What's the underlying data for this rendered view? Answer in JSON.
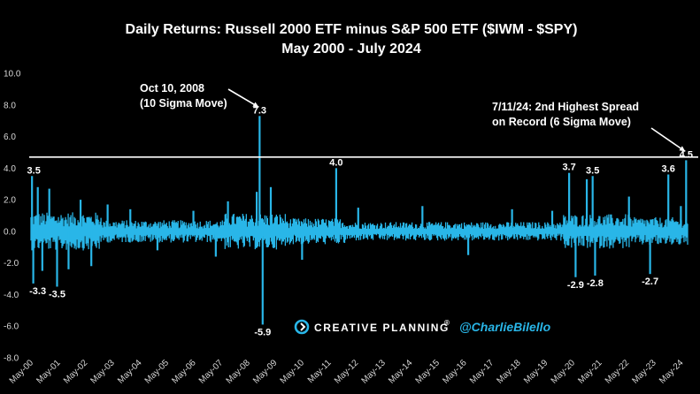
{
  "chart_data": {
    "type": "bar",
    "title": "Daily Returns: Russell 2000 ETF minus S&P 500 ETF ($IWM - $SPY)",
    "subtitle": "May 2000 - July 2024",
    "xlabel": "",
    "ylabel": "",
    "ylim": [
      -8.0,
      10.0
    ],
    "y_ticks": [
      "10.0",
      "8.0",
      "6.0",
      "4.0",
      "2.0",
      "0.0",
      "-2.0",
      "-4.0",
      "-6.0",
      "-8.0"
    ],
    "x_ticks": [
      "May-00",
      "May-01",
      "May-02",
      "May-03",
      "May-04",
      "May-05",
      "May-06",
      "May-07",
      "May-08",
      "May-09",
      "May-10",
      "May-11",
      "May-12",
      "May-13",
      "May-14",
      "May-15",
      "May-16",
      "May-17",
      "May-18",
      "May-19",
      "May-20",
      "May-21",
      "May-22",
      "May-23",
      "May-24"
    ],
    "x_range": [
      "2000-05-01",
      "2024-07-31"
    ],
    "grid": false,
    "bar_color": "#29b6e8",
    "reference_line": {
      "value": 4.7,
      "color": "#ffffff"
    },
    "series": [
      {
        "values": [
          [
            "2000-05-15",
            3.5
          ],
          [
            "2000-06-01",
            -3.3
          ],
          [
            "2000-08-01",
            2.8
          ],
          [
            "2000-10-01",
            -2.5
          ],
          [
            "2001-01-03",
            2.7
          ],
          [
            "2001-04-18",
            -3.5
          ],
          [
            "2001-09-20",
            -2.4
          ],
          [
            "2002-03-01",
            2.0
          ],
          [
            "2002-07-24",
            -2.2
          ],
          [
            "2003-03-01",
            1.7
          ],
          [
            "2004-01-01",
            1.4
          ],
          [
            "2005-01-01",
            -1.2
          ],
          [
            "2006-05-01",
            1.3
          ],
          [
            "2007-02-27",
            -1.6
          ],
          [
            "2007-08-10",
            1.9
          ],
          [
            "2008-09-01",
            2.5
          ],
          [
            "2008-10-10",
            7.3
          ],
          [
            "2008-11-20",
            -5.9
          ],
          [
            "2009-03-10",
            2.8
          ],
          [
            "2010-05-06",
            -1.8
          ],
          [
            "2011-08-09",
            4.0
          ],
          [
            "2012-06-01",
            1.5
          ],
          [
            "2014-10-15",
            1.6
          ],
          [
            "2016-06-24",
            -1.5
          ],
          [
            "2018-02-05",
            1.4
          ],
          [
            "2019-08-01",
            1.3
          ],
          [
            "2020-03-16",
            3.7
          ],
          [
            "2020-06-11",
            -2.9
          ],
          [
            "2020-11-09",
            3.3
          ],
          [
            "2021-01-27",
            3.5
          ],
          [
            "2021-03-01",
            -2.8
          ],
          [
            "2022-06-01",
            2.2
          ],
          [
            "2023-03-13",
            -2.7
          ],
          [
            "2023-11-14",
            3.6
          ],
          [
            "2024-05-01",
            1.6
          ],
          [
            "2024-07-11",
            4.5
          ]
        ]
      }
    ],
    "data_labels": [
      {
        "date": "2000-05-15",
        "value": 3.5,
        "text": "3.5"
      },
      {
        "date": "2000-06-01",
        "value": -3.3,
        "text": "-3.3"
      },
      {
        "date": "2001-04-18",
        "value": -3.5,
        "text": "-3.5"
      },
      {
        "date": "2008-10-10",
        "value": 7.3,
        "text": "7.3"
      },
      {
        "date": "2008-11-20",
        "value": -5.9,
        "text": "-5.9"
      },
      {
        "date": "2011-08-09",
        "value": 4.0,
        "text": "4.0"
      },
      {
        "date": "2020-03-16",
        "value": 3.7,
        "text": "3.7"
      },
      {
        "date": "2020-06-11",
        "value": -2.9,
        "text": "-2.9"
      },
      {
        "date": "2021-01-27",
        "value": 3.5,
        "text": "3.5"
      },
      {
        "date": "2021-03-01",
        "value": -2.8,
        "text": "-2.8"
      },
      {
        "date": "2023-11-14",
        "value": 3.6,
        "text": "3.6"
      },
      {
        "date": "2023-03-13",
        "value": -2.7,
        "text": "-2.7"
      },
      {
        "date": "2024-07-11",
        "value": 4.5,
        "text": "4.5"
      }
    ],
    "annotations": [
      {
        "lines": [
          "Oct 10, 2008",
          "(10 Sigma Move)"
        ],
        "points_to": "2008-10-10"
      },
      {
        "lines": [
          "7/11/24: 2nd Highest Spread",
          "on Record (6 Sigma Move)"
        ],
        "points_to": "2024-07-11"
      }
    ]
  },
  "branding": {
    "company": "CREATIVE PLANNING",
    "trademark": "®",
    "handle": "@CharlieBilello",
    "accent_color": "#29b6e8",
    "icon": "creative-planning-logo-icon"
  }
}
